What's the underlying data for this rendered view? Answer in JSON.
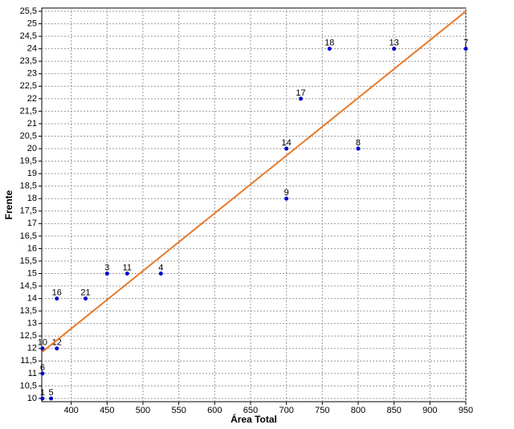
{
  "chart_data": {
    "type": "scatter",
    "x_label": "Área Total",
    "y_label": "Frente",
    "xlim": [
      359,
      950
    ],
    "ylim": [
      9.87,
      25.63
    ],
    "xticks": [
      400,
      450,
      500,
      550,
      600,
      650,
      700,
      750,
      800,
      850,
      900,
      950
    ],
    "yticks": [
      10,
      {
        "value": 10.5,
        "label": "10,5"
      },
      11,
      {
        "value": 11.5,
        "label": "11,5"
      },
      12,
      {
        "value": 12.5,
        "label": "12,5"
      },
      13,
      {
        "value": 13.5,
        "label": "13,5"
      },
      14,
      {
        "value": 14.5,
        "label": "14,5"
      },
      15,
      {
        "value": 15.5,
        "label": "15,5"
      },
      16,
      {
        "value": 16.5,
        "label": "16,5"
      },
      17,
      {
        "value": 17.5,
        "label": "17,5"
      },
      18,
      {
        "value": 18.5,
        "label": "18,5"
      },
      19,
      {
        "value": 19.5,
        "label": "19,5"
      },
      20,
      {
        "value": 20.5,
        "label": "20,5"
      },
      21,
      {
        "value": 21.5,
        "label": "21,5"
      },
      22,
      {
        "value": 22.5,
        "label": "22,5"
      },
      23,
      {
        "value": 23.5,
        "label": "23,5"
      },
      24,
      {
        "value": 24.5,
        "label": "24,5"
      },
      25,
      {
        "value": 25.5,
        "label": "25,5"
      }
    ],
    "grid": true,
    "series": [
      {
        "color": "#0000cc",
        "x": [
          360,
          372,
          360,
          360,
          380,
          380,
          420,
          450,
          478,
          525,
          700,
          700,
          720,
          800,
          760,
          850,
          950
        ],
        "values": [
          10,
          10,
          11,
          12,
          12,
          14,
          14,
          15,
          15,
          15,
          18,
          20,
          22,
          20,
          24,
          24,
          24
        ],
        "point_labels": [
          "1",
          "5",
          "6",
          "10",
          "12",
          "16",
          "21",
          "3",
          "11",
          "4",
          "9",
          "14",
          "17",
          "8",
          "18",
          "13",
          "7"
        ]
      },
      {
        "type": "line",
        "color": "#e8792a",
        "x": [
          360,
          950
        ],
        "values": [
          11.87,
          25.5
        ]
      }
    ]
  }
}
